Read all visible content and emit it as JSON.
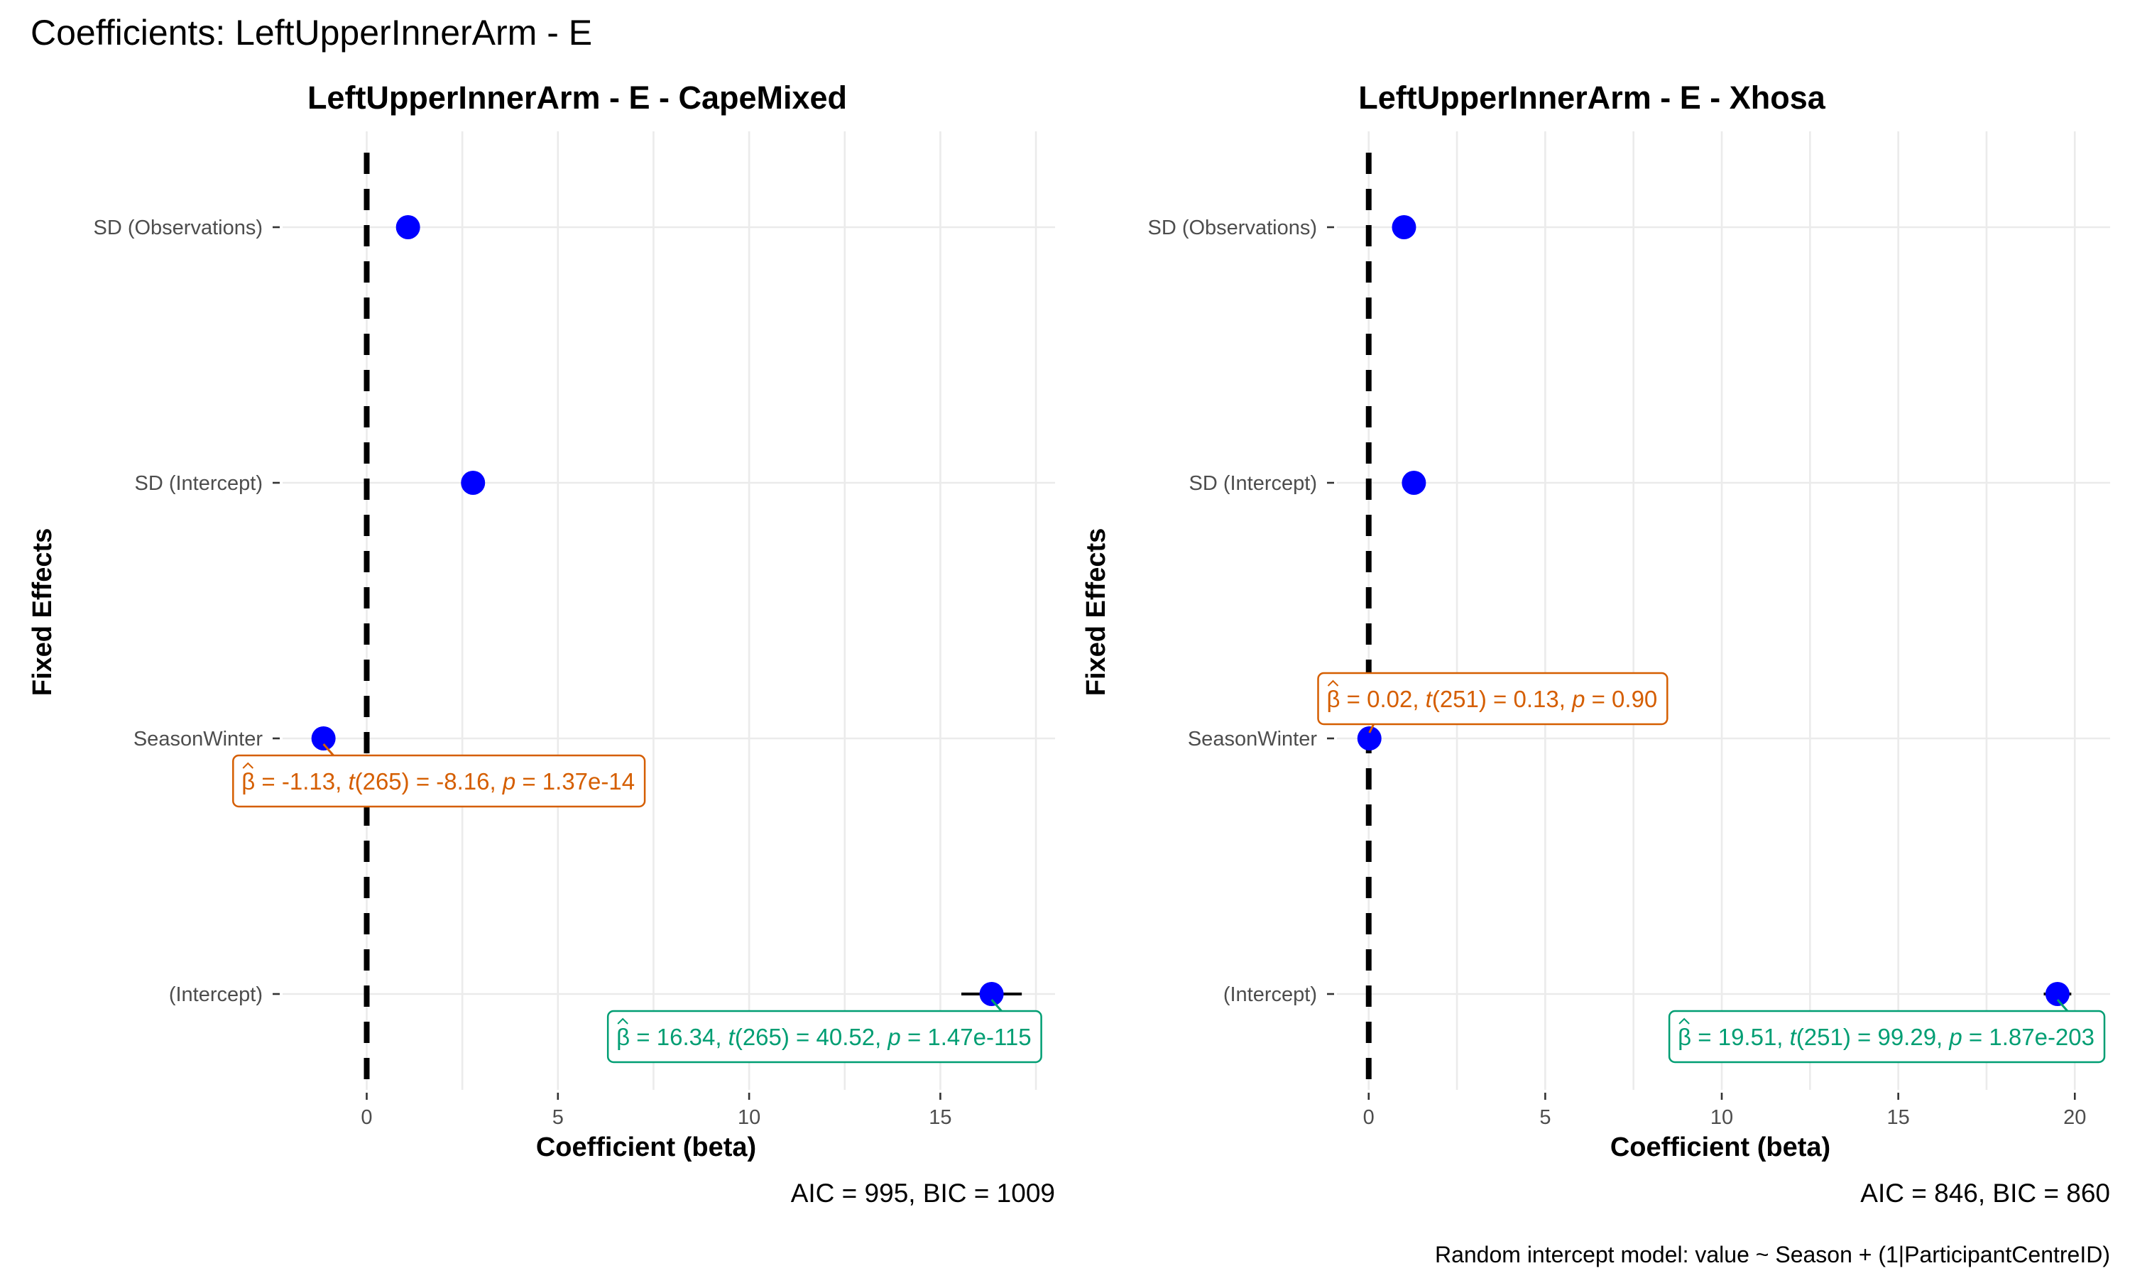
{
  "figure": {
    "title": "Coefficients: LeftUpperInnerArm - E",
    "footnote": "Random intercept model: value ~ Season + (1|ParticipantCentreID)"
  },
  "colors": {
    "point": "#0000ff",
    "negative_label": "#d55e00",
    "positive_label": "#009e73",
    "zero_line": "#000000",
    "grid": "#ebebeb"
  },
  "chart_data": [
    {
      "type": "scatter",
      "title": "LeftUpperInnerArm - E - CapeMixed",
      "xlabel": "Coefficient (beta)",
      "ylabel": "Fixed Effects",
      "xlim": [
        -2.2,
        18.0
      ],
      "x_ticks": [
        0,
        5,
        10,
        15
      ],
      "x_tick_labels": [
        "0",
        "5",
        "10",
        "15"
      ],
      "categories": [
        "(Intercept)",
        "SeasonWinter",
        "SD (Intercept)",
        "SD (Observations)"
      ],
      "values": [
        16.34,
        -1.13,
        2.78,
        1.08
      ],
      "ci": [
        [
          15.55,
          17.13
        ],
        null,
        null,
        null
      ],
      "reference_line": 0,
      "grid": true,
      "caption": "AIC = 995, BIC = 1009",
      "annotations": [
        {
          "category": "SeasonWinter",
          "beta": "-1.13",
          "df": "265",
          "t": "-8.16",
          "p": "1.37e-14",
          "color": "negative_label"
        },
        {
          "category": "(Intercept)",
          "beta": "16.34",
          "df": "265",
          "t": "40.52",
          "p": "1.47e-115",
          "color": "positive_label"
        }
      ]
    },
    {
      "type": "scatter",
      "title": "LeftUpperInnerArm - E - Xhosa",
      "xlabel": "Coefficient (beta)",
      "ylabel": "Fixed Effects",
      "xlim": [
        -0.9,
        21.0
      ],
      "x_ticks": [
        0,
        5,
        10,
        15,
        20
      ],
      "x_tick_labels": [
        "0",
        "5",
        "10",
        "15",
        "20"
      ],
      "categories": [
        "(Intercept)",
        "SeasonWinter",
        "SD (Intercept)",
        "SD (Observations)"
      ],
      "values": [
        19.51,
        0.02,
        1.28,
        1.0
      ],
      "ci": [
        [
          19.12,
          19.9
        ],
        [
          -0.28,
          0.32
        ],
        null,
        null
      ],
      "reference_line": 0,
      "grid": true,
      "caption": "AIC = 846, BIC = 860",
      "annotations": [
        {
          "category": "SeasonWinter",
          "beta": "0.02",
          "df": "251",
          "t": "0.13",
          "p": "0.90",
          "color": "negative_label"
        },
        {
          "category": "(Intercept)",
          "beta": "19.51",
          "df": "251",
          "t": "99.29",
          "p": "1.87e-203",
          "color": "positive_label"
        }
      ]
    }
  ]
}
